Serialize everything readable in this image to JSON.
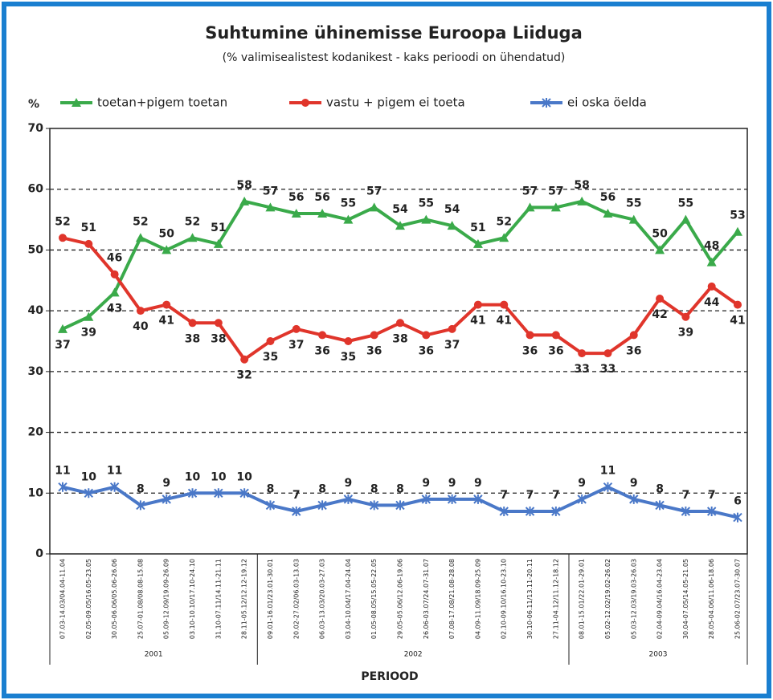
{
  "chart_data": {
    "type": "line",
    "title": "Suhtumine ühinemisse Euroopa Liiduga",
    "subtitle": "(% valimisealistest kodanikest - kaks perioodi on ühendatud)",
    "y_label": "%",
    "x_label": "PERIOOD",
    "groups": [
      {
        "name": "2001",
        "categories": [
          "07.03-14.03/04.04-11.04",
          "02.05-09.05/16.05-23.05",
          "30.05-06.06/05.06-26.06",
          "25.07-01.08/08.08-15.08",
          "05.09-12.09/19.09-26.09",
          "03.10-10.10/17.10-24.10",
          "31.10-07.11/14.11-21.11",
          "28.11-05.12/12.12-19.12"
        ]
      },
      {
        "name": "2002",
        "categories": [
          "09.01-16.01/23.01-30.01",
          "20.02-27.02/06.03-13.03",
          "06.03-13.03/20.03-27.03",
          "03.04-10.04/17.04-24.04",
          "01.05-08.05/15.05-22.05",
          "29.05-05.06/12.06-19.06",
          "26.06-03.07/24.07-31.07",
          "07.08-17.08/21.08-28.08",
          "04.09-11.09/18.09-25.09",
          "02.10-09.10/16.10-23.10",
          "30.10-06.11/13.11-20.11",
          "27.11-04.12/11.12-18.12"
        ]
      },
      {
        "name": "2003",
        "categories": [
          "08.01-15.01/22.01-29.01",
          "05.02-12.02/19.02-26.02",
          "05.03-12.03/19.03-26.03",
          "02.04-09.04/16.04-23.04",
          "30.04-07.05/14.05-21.05",
          "28.05-04.06/11.06-18.06",
          "25.06-02.07/23.07-30.07"
        ]
      }
    ],
    "series": [
      {
        "name": "toetan+pigem toetan",
        "color": "#3aaa4a",
        "marker": "triangle",
        "values": [
          37,
          39,
          43,
          52,
          50,
          52,
          51,
          58,
          57,
          56,
          56,
          55,
          57,
          54,
          55,
          54,
          51,
          52,
          57,
          57,
          58,
          56,
          55,
          50,
          55,
          48,
          53
        ]
      },
      {
        "name": "vastu + pigem ei toeta",
        "color": "#e0352b",
        "marker": "circle",
        "values": [
          52,
          51,
          46,
          40,
          41,
          38,
          38,
          32,
          35,
          37,
          36,
          35,
          36,
          38,
          36,
          37,
          41,
          41,
          36,
          36,
          33,
          33,
          36,
          42,
          39,
          44,
          41
        ]
      },
      {
        "name": "ei oska öelda",
        "color": "#4a78c8",
        "marker": "star",
        "values": [
          11,
          10,
          11,
          8,
          9,
          10,
          10,
          10,
          8,
          7,
          8,
          9,
          8,
          8,
          9,
          9,
          9,
          7,
          7,
          7,
          9,
          11,
          9,
          8,
          7,
          7,
          6
        ]
      }
    ],
    "ylim": [
      0,
      70
    ],
    "yticks": [
      0,
      10,
      20,
      30,
      40,
      50,
      60,
      70
    ],
    "grid": true,
    "legend": "top"
  }
}
